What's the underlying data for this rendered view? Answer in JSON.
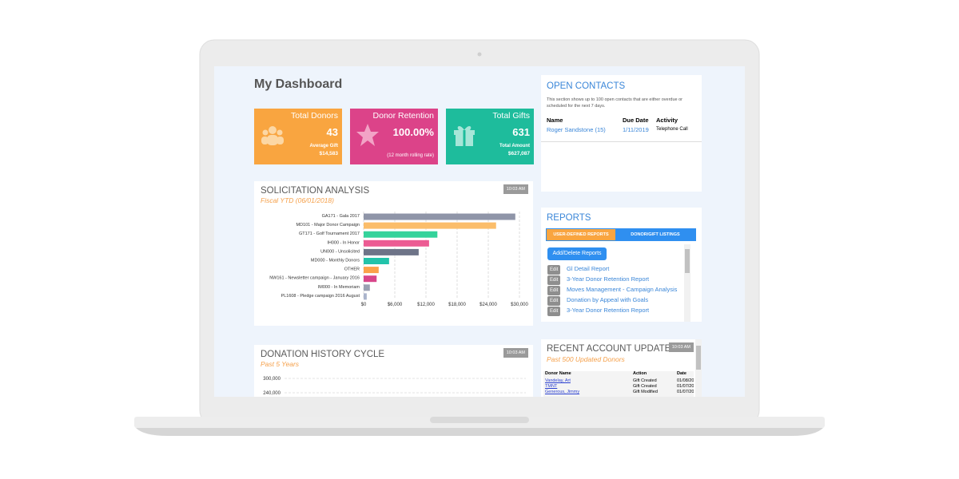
{
  "header": {
    "title": "My Dashboard"
  },
  "cards": [
    {
      "title": "Total Donors",
      "value": "43",
      "sublabel": "Average Gift",
      "subvalue": "$14,583"
    },
    {
      "title": "Donor Retention",
      "value": "100.00%",
      "sublabel": "(12 month rolling rate)"
    },
    {
      "title": "Total Gifts",
      "value": "631",
      "sublabel": "Total Amount",
      "subvalue": "$627,087"
    }
  ],
  "open_contacts": {
    "title": "OPEN CONTACTS",
    "note": "This section shows up to 100 open contacts that are either overdue or scheduled for the next 7 days.",
    "columns": [
      "Name",
      "Due Date",
      "Activity"
    ],
    "rows": [
      [
        "Roger Sandstone (15)",
        "1/11/2019",
        "Telephone Call"
      ]
    ]
  },
  "chart_data": {
    "type": "bar",
    "orientation": "horizontal",
    "title": "SOLICITATION ANALYSIS",
    "subtitle": "Fiscal YTD (06/01/2018)",
    "time": "10:03 AM",
    "categories": [
      "GA171 - Gala 2017",
      "MD101 - Major Donor Campaign",
      "GT171 - Golf Tournament 2017",
      "IH000 - In Honor",
      "UN000 - Unsolicited",
      "MD000 - Monthly Donors",
      "OTHER",
      "NW161 - Newsletter campaign - January 2016",
      "IM000 - In Memoriam",
      "PL1608 - Pledge campaign 2016 August"
    ],
    "values": [
      29200,
      25500,
      14200,
      12600,
      10600,
      4900,
      2900,
      2500,
      1200,
      600
    ],
    "colors": [
      "#8f95a8",
      "#fbbd6a",
      "#34d39b",
      "#ec5b93",
      "#6e7488",
      "#22c3aa",
      "#fba24a",
      "#d8468a",
      "#9aa0b2",
      "#aab4cc"
    ],
    "xlim": [
      0,
      30000
    ],
    "xticks": [
      {
        "value": 0,
        "label": "$0"
      },
      {
        "value": 6000,
        "label": "$6,000"
      },
      {
        "value": 12000,
        "label": "$12,000"
      },
      {
        "value": 18000,
        "label": "$18,000"
      },
      {
        "value": 24000,
        "label": "$24,000"
      },
      {
        "value": 30000,
        "label": "$30,000"
      }
    ],
    "grid": true
  },
  "donation_history": {
    "title": "DONATION HISTORY CYCLE",
    "subtitle": "Past 5 Years",
    "time": "10:03 AM",
    "ylim": [
      0,
      300000
    ],
    "yticks": [
      {
        "value": 300000,
        "label": "300,000"
      },
      {
        "value": 240000,
        "label": "240,000"
      }
    ]
  },
  "reports": {
    "title": "REPORTS",
    "tabs": [
      "USER-DEFINED REPORTS",
      "DONOR/GIFT LISTINGS"
    ],
    "button": "Add/Delete Reports",
    "edit_label": "Edit",
    "items": [
      "Gl Detail Report",
      "3-Year Donor Retention Report",
      "Moves Management - Campaign Analysis",
      "Donation by Appeal with Goals",
      "3-Year Donor Retention Report"
    ]
  },
  "recent_updates": {
    "title": "RECENT ACCOUNT UPDATES",
    "subtitle": "Past 500 Updated Donors",
    "time": "10:03 AM",
    "columns": [
      "Donor Name",
      "Action",
      "Date"
    ],
    "rows": [
      [
        "Vandelay, Art",
        "Gift Created",
        "01/08/20"
      ],
      [
        "TMNT",
        "Gift Created",
        "01/07/20"
      ],
      [
        "Generous, Jimmy",
        "Gift Modified",
        "01/07/20"
      ]
    ]
  }
}
